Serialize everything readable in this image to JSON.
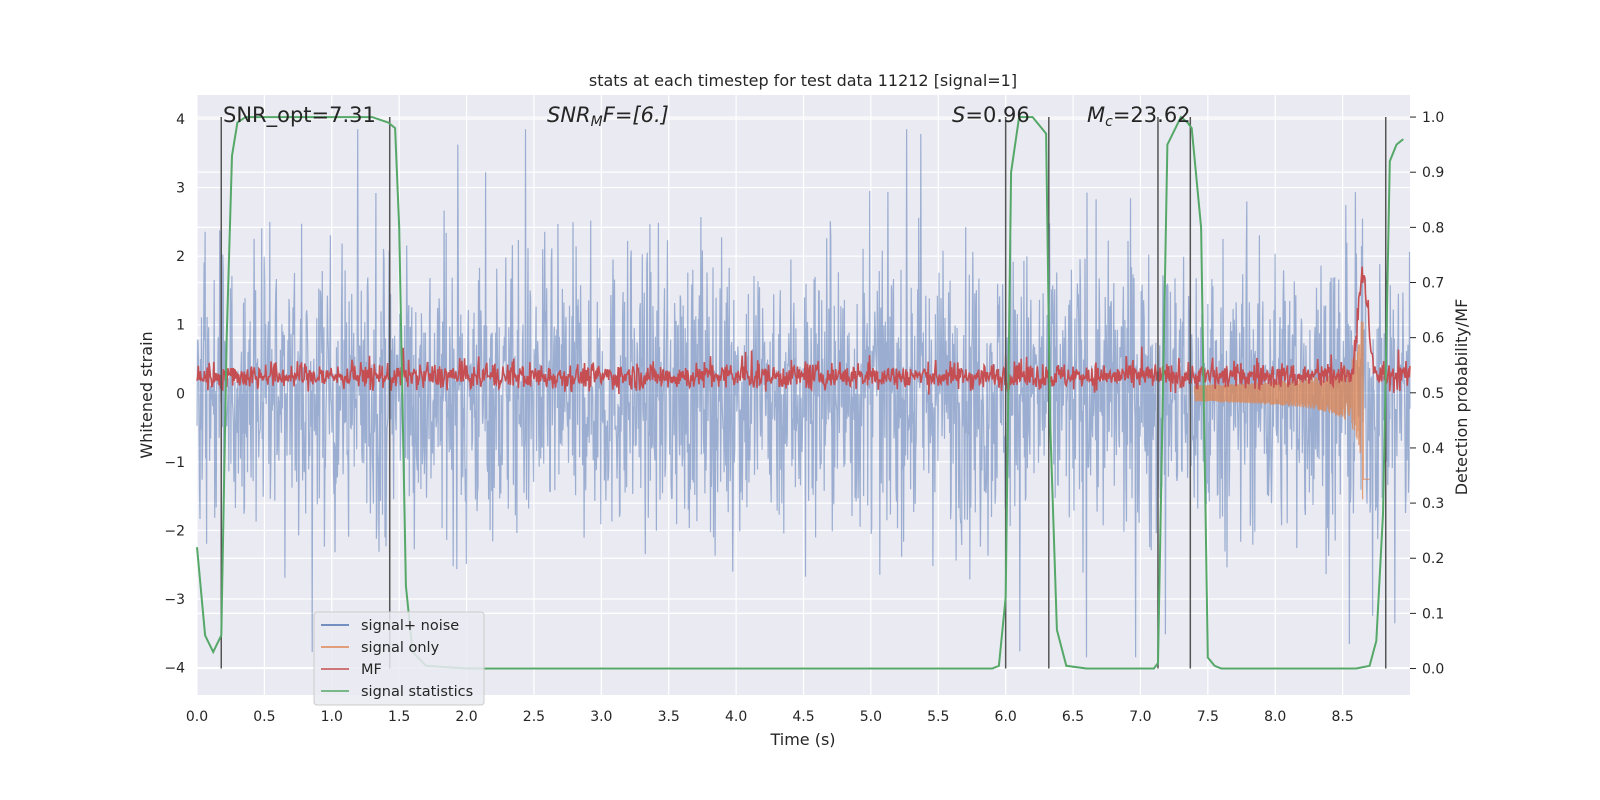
{
  "chart_data": {
    "type": "line",
    "title": "stats at each timestep for test data 11212 [signal=1]",
    "xlabel": "Time (s)",
    "ylabel": "Whitened strain",
    "y2label": "Detection probability/MF",
    "xlim": [
      0.0,
      9.0
    ],
    "ylim": [
      -4.4,
      4.35
    ],
    "y2lim": [
      -0.048,
      1.04
    ],
    "xticks": [
      "0.0",
      "0.5",
      "1.0",
      "1.5",
      "2.0",
      "2.5",
      "3.0",
      "3.5",
      "4.0",
      "4.5",
      "5.0",
      "5.5",
      "6.0",
      "6.5",
      "7.0",
      "7.5",
      "8.0",
      "8.5"
    ],
    "yticks": [
      "4",
      "3",
      "2",
      "1",
      "0",
      "−1",
      "−2",
      "−3",
      "−4"
    ],
    "y2ticks": [
      "1.0",
      "0.9",
      "0.8",
      "0.7",
      "0.6",
      "0.5",
      "0.4",
      "0.3",
      "0.2",
      "0.1",
      "0.0"
    ],
    "grid": true,
    "legend_position": "lower-left",
    "annotations": {
      "snr_opt": "SNR_opt=7.31",
      "snr_mf_base": "SNR",
      "snr_mf_sub": "M",
      "snr_mf_rest": "F=[6.]",
      "s_stat_sym": "S",
      "s_stat_rest": "=0.96",
      "mc_sym": "M",
      "mc_sub": "c",
      "mc_rest": "=23.62"
    },
    "series": [
      {
        "name": "signal+ noise",
        "color": "#4c72b0",
        "style": "noisy strain trace, amplitude mostly within ±2.3, spikes to ±3.9"
      },
      {
        "name": "signal only",
        "color": "#dd8452",
        "style": "chirp growing from 7.4 s, peak amplitude about ±1.8 near 8.65 s"
      },
      {
        "name": "MF",
        "color": "#c44e52",
        "style": "matched filter output on right axis, around 0.53 with peaks to 0.58, rising to 0.73 near 8.65 s"
      },
      {
        "name": "signal statistics",
        "color": "#55a868",
        "x": [
          0.0,
          0.06,
          0.12,
          0.18,
          0.22,
          0.26,
          0.3,
          0.36,
          0.45,
          0.6,
          1.0,
          1.3,
          1.42,
          1.47,
          1.5,
          1.55,
          1.6,
          1.7,
          2.0,
          3.0,
          4.0,
          5.0,
          5.9,
          5.95,
          6.0,
          6.04,
          6.1,
          6.2,
          6.3,
          6.33,
          6.38,
          6.45,
          6.6,
          7.0,
          7.1,
          7.13,
          7.2,
          7.3,
          7.35,
          7.38,
          7.45,
          7.5,
          7.55,
          7.6,
          7.8,
          8.0,
          8.3,
          8.6,
          8.7,
          8.75,
          8.8,
          8.85,
          8.9,
          8.95
        ],
        "values": [
          0.22,
          0.06,
          0.03,
          0.06,
          0.6,
          0.93,
          0.99,
          1.0,
          1.0,
          1.0,
          1.0,
          1.0,
          0.99,
          0.98,
          0.8,
          0.15,
          0.03,
          0.005,
          0.0,
          0.0,
          0.0,
          0.0,
          0.0,
          0.005,
          0.13,
          0.9,
          1.0,
          1.0,
          0.97,
          0.45,
          0.07,
          0.005,
          0.0,
          0.0,
          0.0,
          0.01,
          0.95,
          1.0,
          0.99,
          0.98,
          0.8,
          0.02,
          0.005,
          0.0,
          0.0,
          0.0,
          0.0,
          0.0,
          0.005,
          0.05,
          0.28,
          0.92,
          0.95,
          0.96
        ]
      }
    ],
    "vlines": {
      "color": "#555555",
      "x": [
        0.18,
        1.43,
        6.0,
        6.32,
        7.13,
        7.37,
        8.82
      ]
    }
  }
}
